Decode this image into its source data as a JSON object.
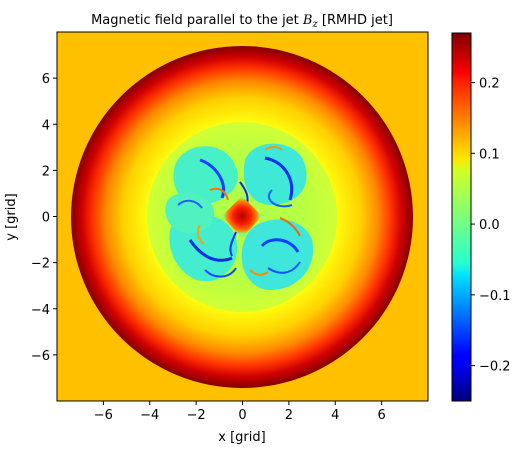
{
  "chart_data": {
    "type": "heatmap",
    "title": {
      "prefix": "Magnetic field parallel to the jet ",
      "symbol": "B",
      "subscript": "z",
      "suffix": " [RMHD jet]"
    },
    "xlabel": "x [grid]",
    "ylabel": "y [grid]",
    "xlim": [
      -8,
      8
    ],
    "ylim": [
      -8,
      8
    ],
    "xticks": [
      -6,
      -4,
      -2,
      0,
      2,
      4,
      6
    ],
    "yticks": [
      -6,
      -4,
      -2,
      0,
      2,
      4,
      6
    ],
    "colormap": "jet",
    "colorbar": {
      "range": [
        -0.25,
        0.27
      ],
      "ticks": [
        -0.2,
        -0.1,
        0.0,
        0.1,
        0.2
      ],
      "tick_labels": [
        "−0.2",
        "−0.1",
        "0.0",
        "0.1",
        "0.2"
      ]
    },
    "grid": false,
    "field_description_values": {
      "background_value": 0.165,
      "outer_rim_value": 0.27,
      "outer_radius": 7.4,
      "inner_plateau_value": 0.08,
      "turbulent_region_value": -0.05,
      "core_value": 0.23
    }
  }
}
